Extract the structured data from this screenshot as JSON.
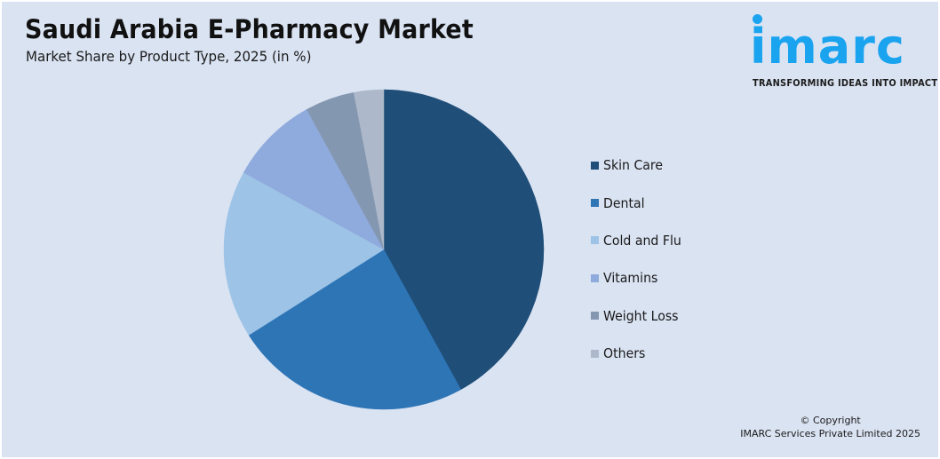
{
  "header": {
    "title": "Saudi Arabia E-Pharmacy Market",
    "subtitle": "Market Share by Product Type, 2025 (in %)"
  },
  "logo": {
    "wordmark": "imarc",
    "tagline": "TRANSFORMING IDEAS INTO IMPACT",
    "color": "#1aa3ef"
  },
  "footer": {
    "line1": "© Copyright",
    "line2": "IMARC Services Private Limited 2025"
  },
  "chart_data": {
    "type": "pie",
    "title": "Saudi Arabia E-Pharmacy Market",
    "subtitle": "Market Share by Product Type, 2025 (in %)",
    "categories": [
      "Skin Care",
      "Dental",
      "Cold and Flu",
      "Vitamins",
      "Weight Loss",
      "Others"
    ],
    "values": [
      42,
      24,
      17,
      9,
      5,
      3
    ],
    "colors": [
      "#1f4e79",
      "#2e75b6",
      "#9dc3e6",
      "#8faadc",
      "#8497b0",
      "#adb9ca"
    ],
    "start_angle": "12 o'clock, clockwise",
    "legend_position": "right",
    "data_labels": false
  }
}
